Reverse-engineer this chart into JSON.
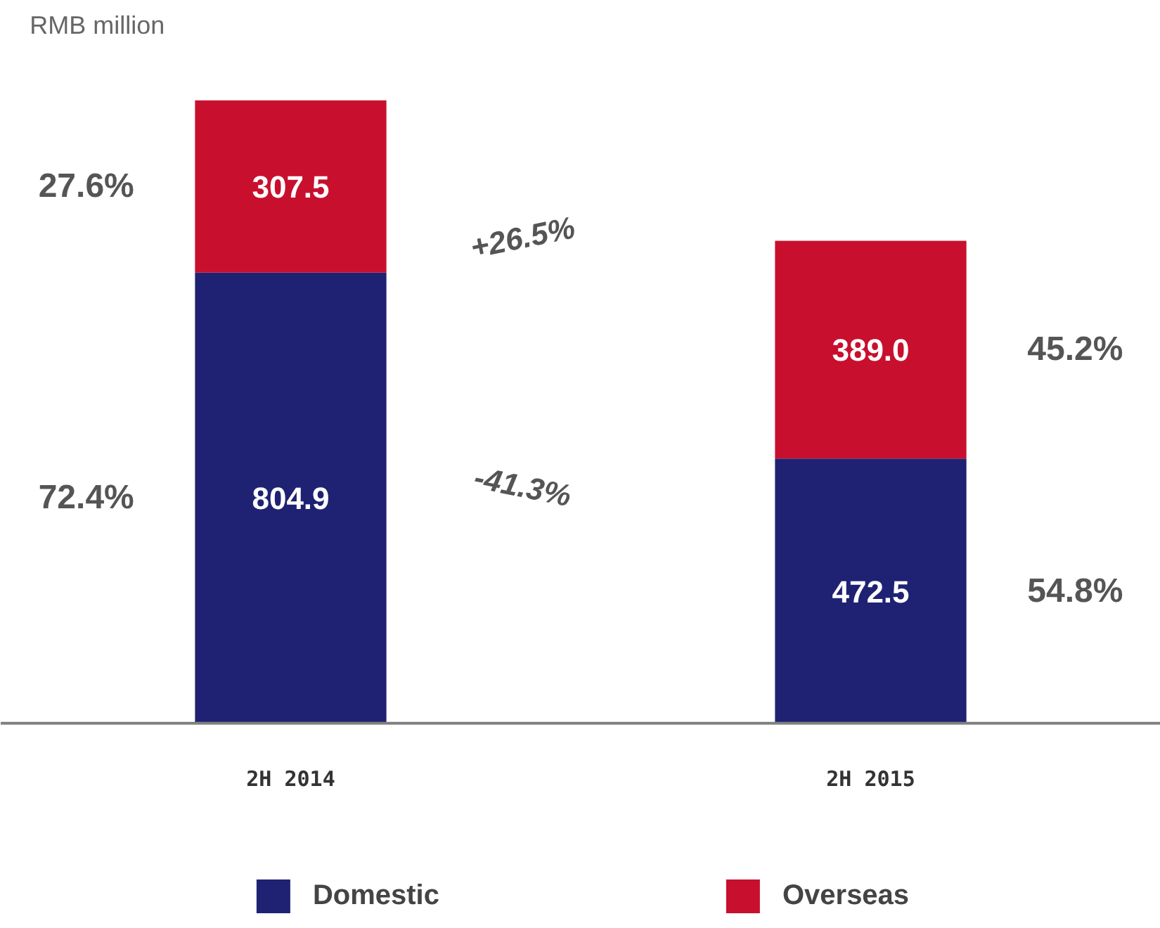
{
  "chart_data": {
    "type": "bar",
    "stacked": true,
    "ylabel": "RMB million",
    "categories": [
      "2H 2014",
      "2H 2015"
    ],
    "series": [
      {
        "name": "Domestic",
        "color": "#1f2273",
        "values": [
          804.9,
          472.5
        ],
        "value_labels": [
          "804.9",
          "472.5"
        ]
      },
      {
        "name": "Overseas",
        "color": "#c8102e",
        "values": [
          307.5,
          389.0
        ],
        "value_labels": [
          "307.5",
          "389.0"
        ]
      }
    ],
    "legend": "bottom",
    "grid": false,
    "annotations": [
      "27.6%",
      "72.4%",
      "45.2%",
      "54.8%",
      "+26.5%",
      "-41.3%"
    ]
  }
}
